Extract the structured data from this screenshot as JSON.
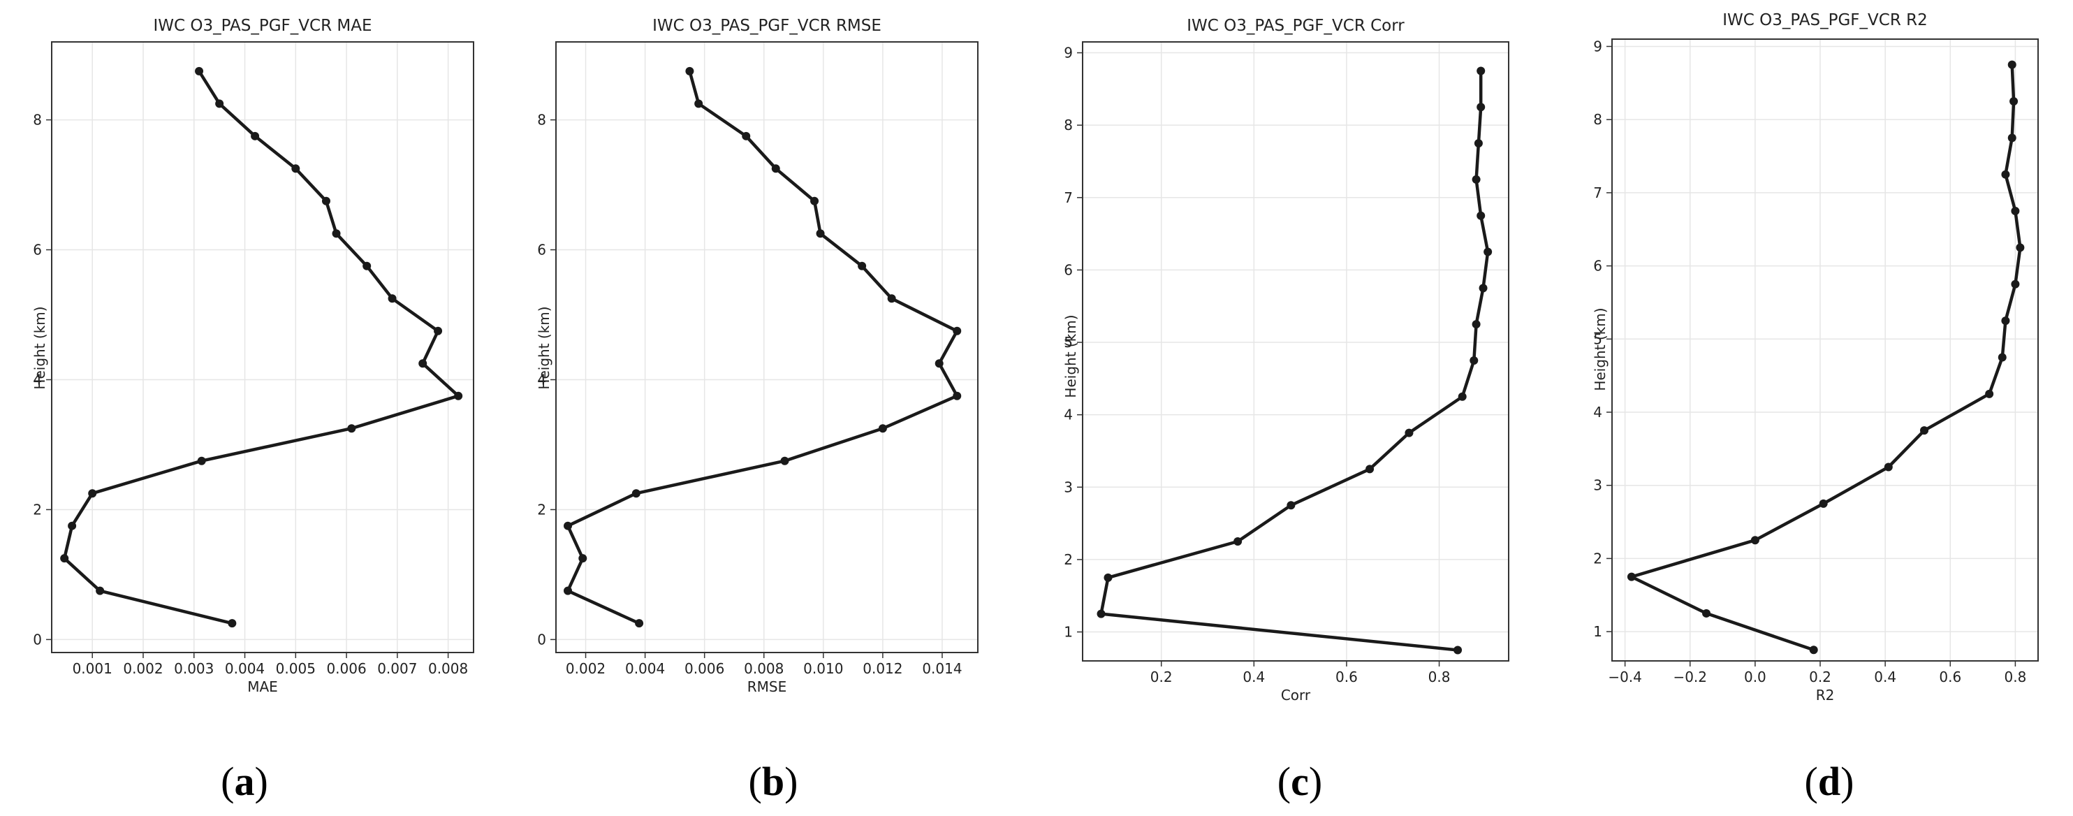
{
  "chart_data": [
    {
      "panel": "(a)",
      "type": "line",
      "title": "IWC O3_PAS_PGF_VCR MAE",
      "xlabel": "MAE",
      "ylabel": "Height (km)",
      "xlim": [
        0.0002,
        0.0085
      ],
      "ylim": [
        -0.2,
        9.2
      ],
      "xticks": [
        0.001,
        0.002,
        0.003,
        0.004,
        0.005,
        0.006,
        0.007,
        0.008
      ],
      "xtick_labels": [
        "0.001",
        "0.002",
        "0.003",
        "0.004",
        "0.005",
        "0.006",
        "0.007",
        "0.008"
      ],
      "yticks": [
        0,
        2,
        4,
        6,
        8
      ],
      "ytick_labels": [
        "0",
        "2",
        "4",
        "6",
        "8"
      ],
      "grid": true,
      "series": [
        {
          "x": [
            0.00375,
            0.00115,
            0.00045,
            0.0006,
            0.001,
            0.00315,
            0.0061,
            0.0082,
            0.0075,
            0.0078,
            0.0069,
            0.0064,
            0.0058,
            0.0056,
            0.005,
            0.0042,
            0.0035,
            0.0031
          ],
          "y": [
            0.25,
            0.75,
            1.25,
            1.75,
            2.25,
            2.75,
            3.25,
            3.75,
            4.25,
            4.75,
            5.25,
            5.75,
            6.25,
            6.75,
            7.25,
            7.75,
            8.25,
            8.75
          ]
        }
      ]
    },
    {
      "panel": "(b)",
      "type": "line",
      "title": "IWC O3_PAS_PGF_VCR RMSE",
      "xlabel": "RMSE",
      "ylabel": "Height (km)",
      "xlim": [
        0.001,
        0.0152
      ],
      "ylim": [
        -0.2,
        9.2
      ],
      "xticks": [
        0.002,
        0.004,
        0.006,
        0.008,
        0.01,
        0.012,
        0.014
      ],
      "xtick_labels": [
        "0.002",
        "0.004",
        "0.006",
        "0.008",
        "0.010",
        "0.012",
        "0.014"
      ],
      "yticks": [
        0,
        2,
        4,
        6,
        8
      ],
      "ytick_labels": [
        "0",
        "2",
        "4",
        "6",
        "8"
      ],
      "grid": true,
      "series": [
        {
          "x": [
            0.0038,
            0.0014,
            0.0019,
            0.0014,
            0.0037,
            0.0087,
            0.012,
            0.0145,
            0.0139,
            0.0145,
            0.0123,
            0.0113,
            0.0099,
            0.0097,
            0.0084,
            0.0074,
            0.0058,
            0.0055
          ],
          "y": [
            0.25,
            0.75,
            1.25,
            1.75,
            2.25,
            2.75,
            3.25,
            3.75,
            4.25,
            4.75,
            5.25,
            5.75,
            6.25,
            6.75,
            7.25,
            7.75,
            8.25,
            8.75
          ]
        }
      ]
    },
    {
      "panel": "(c)",
      "type": "line",
      "title": "IWC O3_PAS_PGF_VCR Corr",
      "xlabel": "Corr",
      "ylabel": "Height (km)",
      "xlim": [
        0.03,
        0.95
      ],
      "ylim": [
        0.6,
        9.15
      ],
      "xticks": [
        0.2,
        0.4,
        0.6,
        0.8
      ],
      "xtick_labels": [
        "0.2",
        "0.4",
        "0.6",
        "0.8"
      ],
      "yticks": [
        1,
        2,
        3,
        4,
        5,
        6,
        7,
        8,
        9
      ],
      "ytick_labels": [
        "1",
        "2",
        "3",
        "4",
        "5",
        "6",
        "7",
        "8",
        "9"
      ],
      "grid": true,
      "series": [
        {
          "x": [
            0.84,
            0.07,
            0.085,
            0.365,
            0.48,
            0.65,
            0.735,
            0.85,
            0.875,
            0.88,
            0.895,
            0.905,
            0.89,
            0.88,
            0.885,
            0.89,
            0.89
          ],
          "y": [
            0.75,
            1.25,
            1.75,
            2.25,
            2.75,
            3.25,
            3.75,
            4.25,
            4.75,
            5.25,
            5.75,
            6.25,
            6.75,
            7.25,
            7.75,
            8.25,
            8.75
          ]
        }
      ]
    },
    {
      "panel": "(d)",
      "type": "line",
      "title": "IWC O3_PAS_PGF_VCR R2",
      "xlabel": "R2",
      "ylabel": "Height (km)",
      "xlim": [
        -0.44,
        0.87
      ],
      "ylim": [
        0.6,
        9.1
      ],
      "xticks": [
        -0.4,
        -0.2,
        0.0,
        0.2,
        0.4,
        0.6,
        0.8
      ],
      "xtick_labels": [
        "−0.4",
        "−0.2",
        "0.0",
        "0.2",
        "0.4",
        "0.6",
        "0.8"
      ],
      "yticks": [
        1,
        2,
        3,
        4,
        5,
        6,
        7,
        8,
        9
      ],
      "ytick_labels": [
        "1",
        "2",
        "3",
        "4",
        "5",
        "6",
        "7",
        "8",
        "9"
      ],
      "grid": true,
      "series": [
        {
          "x": [
            0.18,
            -0.15,
            -0.38,
            0.0,
            0.21,
            0.41,
            0.52,
            0.72,
            0.76,
            0.77,
            0.8,
            0.815,
            0.8,
            0.77,
            0.79,
            0.795,
            0.79
          ],
          "y": [
            0.75,
            1.25,
            1.75,
            2.25,
            2.75,
            3.25,
            3.75,
            4.25,
            4.75,
            5.25,
            5.75,
            6.25,
            6.75,
            7.25,
            7.75,
            8.25,
            8.75
          ]
        }
      ]
    }
  ],
  "panel_labels": [
    {
      "open": "(",
      "letter": "a",
      "close": ")"
    },
    {
      "open": "(",
      "letter": "b",
      "close": ")"
    },
    {
      "open": "(",
      "letter": "c",
      "close": ")"
    },
    {
      "open": "(",
      "letter": "d",
      "close": ")"
    }
  ],
  "colors": {
    "line": "#1a1a1a",
    "axis": "#333333",
    "grid": "#e6e6e6"
  }
}
